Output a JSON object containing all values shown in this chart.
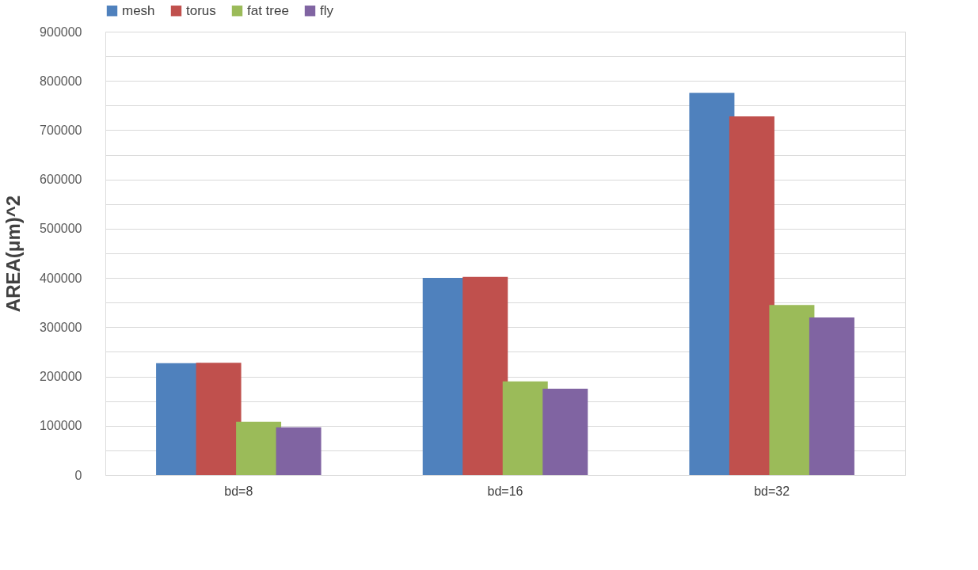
{
  "chart_data": {
    "type": "bar",
    "ylabel": "AREA(μm)^2",
    "categories": [
      "bd=8",
      "bd=16",
      "bd=32"
    ],
    "series": [
      {
        "name": "mesh",
        "color": "#4f81bd",
        "values": [
          227000,
          400000,
          776000
        ]
      },
      {
        "name": "torus",
        "color": "#c0504d",
        "values": [
          228000,
          402000,
          728000
        ]
      },
      {
        "name": "fat tree",
        "color": "#9bbb59",
        "values": [
          108000,
          190000,
          345000
        ]
      },
      {
        "name": "fly",
        "color": "#8064a2",
        "values": [
          97000,
          175000,
          320000
        ]
      }
    ],
    "ylim": [
      0,
      900000
    ],
    "yticks": [
      0,
      {
        "value": 50000,
        "label": null
      },
      100000,
      {
        "value": 150000,
        "label": null
      },
      200000,
      {
        "value": 250000,
        "label": null
      },
      300000,
      {
        "value": 350000,
        "label": null
      },
      400000,
      {
        "value": 450000,
        "label": null
      },
      500000,
      {
        "value": 550000,
        "label": null
      },
      600000,
      {
        "value": 650000,
        "label": null
      },
      700000,
      {
        "value": 750000,
        "label": null
      },
      800000,
      {
        "value": 850000,
        "label": null
      },
      900000
    ],
    "grid": "y",
    "legend": "top"
  }
}
